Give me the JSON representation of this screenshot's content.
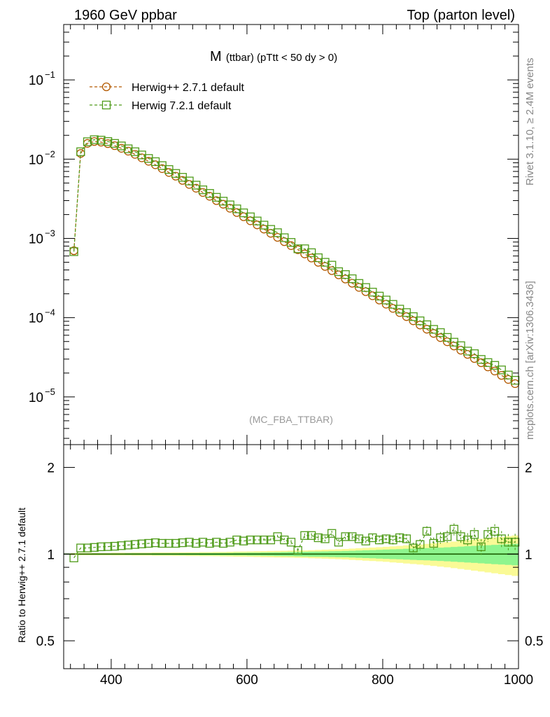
{
  "header": {
    "left": "1960 GeV ppbar",
    "right": "Top (parton level)"
  },
  "side_texts": {
    "rivet": "Rivet 3.1.10, ≥ 2.4M events",
    "mcplots": "mcplots.cern.ch [arXiv:1306.3436]"
  },
  "plot_title": {
    "main": "M",
    "rest": " (ttbar) (pTtt < 50 dy > 0)"
  },
  "analysis_label": "(MC_FBA_TTBAR)",
  "ratio_ylabel": "Ratio to Herwig++ 2.7.1 default",
  "colors": {
    "herwig_pp": "#b35900",
    "herwig7": "#4f9b1a",
    "band_inner": "#8ef58e",
    "band_outer": "#fafa96"
  },
  "chart_data": [
    {
      "type": "line",
      "scale": "log",
      "xlim": [
        330,
        1000
      ],
      "ylim": [
        2.5e-06,
        0.5
      ],
      "x_ticks": [
        "400",
        "600",
        "800",
        "1000"
      ],
      "y_ticks": [
        {
          "value": 0.1,
          "label": "10",
          "exp": "−1"
        },
        {
          "value": 0.01,
          "label": "10",
          "exp": "−2"
        },
        {
          "value": 0.001,
          "label": "10",
          "exp": "−3"
        },
        {
          "value": 0.0001,
          "label": "10",
          "exp": "−4"
        },
        {
          "value": 1e-05,
          "label": "10",
          "exp": "−5"
        }
      ],
      "legend_position": "top-left",
      "series": [
        {
          "name": "Herwig++ 2.7.1 default",
          "marker": "circle",
          "x": [
            345,
            355,
            365,
            375,
            385,
            395,
            405,
            415,
            425,
            435,
            445,
            455,
            465,
            475,
            485,
            495,
            505,
            515,
            525,
            535,
            545,
            555,
            565,
            575,
            585,
            595,
            605,
            615,
            625,
            635,
            645,
            655,
            665,
            675,
            685,
            695,
            705,
            715,
            725,
            735,
            745,
            755,
            765,
            775,
            785,
            795,
            805,
            815,
            825,
            835,
            845,
            855,
            865,
            875,
            885,
            895,
            905,
            915,
            925,
            935,
            945,
            955,
            965,
            975,
            985,
            995
          ],
          "y": [
            0.0007,
            0.0118,
            0.0158,
            0.0167,
            0.0164,
            0.0157,
            0.0148,
            0.0137,
            0.0126,
            0.0115,
            0.0104,
            0.0094,
            0.0085,
            0.0076,
            0.0068,
            0.0061,
            0.0054,
            0.0048,
            0.0043,
            0.0038,
            0.0034,
            0.003,
            0.0027,
            0.0024,
            0.00212,
            0.00188,
            0.00167,
            0.00148,
            0.00131,
            0.00116,
            0.00103,
            0.00091,
            0.00081,
            0.00072,
            0.000637,
            0.000565,
            0.0005,
            0.000443,
            0.000392,
            0.000347,
            0.000307,
            0.000272,
            0.000241,
            0.000213,
            0.000189,
            0.000167,
            0.000148,
            0.000131,
            0.000116,
            0.000103,
            9.12e-05,
            8.07e-05,
            7.14e-05,
            6.32e-05,
            5.6e-05,
            4.96e-05,
            4.39e-05,
            3.89e-05,
            3.44e-05,
            3.05e-05,
            2.7e-05,
            2.39e-05,
            2.12e-05,
            1.87e-05,
            1.66e-05,
            1.47e-05
          ]
        },
        {
          "name": "Herwig 7.2.1 default",
          "marker": "square",
          "x": [
            345,
            355,
            365,
            375,
            385,
            395,
            405,
            415,
            425,
            435,
            445,
            455,
            465,
            475,
            485,
            495,
            505,
            515,
            525,
            535,
            545,
            555,
            565,
            575,
            585,
            595,
            605,
            615,
            625,
            635,
            645,
            655,
            665,
            675,
            685,
            695,
            705,
            715,
            725,
            735,
            745,
            755,
            765,
            775,
            785,
            795,
            805,
            815,
            825,
            835,
            845,
            855,
            865,
            875,
            885,
            895,
            905,
            915,
            925,
            935,
            945,
            955,
            965,
            975,
            985,
            995
          ],
          "y": [
            0.00068,
            0.0124,
            0.0166,
            0.0176,
            0.0174,
            0.0167,
            0.0158,
            0.0147,
            0.0135,
            0.0124,
            0.0113,
            0.0102,
            0.0093,
            0.0083,
            0.0074,
            0.0066,
            0.0059,
            0.0053,
            0.0047,
            0.0041,
            0.0037,
            0.0033,
            0.00295,
            0.00265,
            0.00236,
            0.0021,
            0.00187,
            0.00166,
            0.00147,
            0.0013,
            0.00118,
            0.00102,
            0.00089,
            0.00074,
            0.00074,
            0.00066,
            0.00057,
            0.0005,
            0.00046,
            0.00038,
            0.00035,
            0.00031,
            0.00027,
            0.00024,
            0.00021,
            0.000187,
            0.000167,
            0.000147,
            0.000128,
            0.000116,
            0.000103,
            9.12e-05,
            8.13e-05,
            7.12e-05,
            6.48e-05,
            5.63e-05,
            4.9e-05,
            4.43e-05,
            3.79e-05,
            3.51e-05,
            2.97e-05,
            2.71e-05,
            2.5e-05,
            2.19e-05,
            1.89e-05,
            1.62e-05
          ]
        }
      ]
    },
    {
      "type": "line",
      "xlim": [
        330,
        1000
      ],
      "ylim": [
        0.4,
        2.4
      ],
      "x_ticks": [
        "400",
        "600",
        "800",
        "1000"
      ],
      "y_ticks": [
        {
          "value": 2,
          "label": "2"
        },
        {
          "value": 1,
          "label": "1"
        },
        {
          "value": 0.5,
          "label": "0.5"
        }
      ],
      "ylabel": "Ratio to Herwig++ 2.7.1 default",
      "reference_line": 1,
      "band_inner_halfwidth": [
        0.003,
        0.004,
        0.004,
        0.005,
        0.005,
        0.005,
        0.005,
        0.005,
        0.006,
        0.006,
        0.006,
        0.006,
        0.007,
        0.007,
        0.007,
        0.007,
        0.008,
        0.008,
        0.008,
        0.009,
        0.009,
        0.009,
        0.01,
        0.01,
        0.011,
        0.011,
        0.012,
        0.012,
        0.013,
        0.014,
        0.015,
        0.016,
        0.017,
        0.018,
        0.019,
        0.02,
        0.021,
        0.022,
        0.023,
        0.024,
        0.025,
        0.027,
        0.029,
        0.031,
        0.033,
        0.035,
        0.037,
        0.039,
        0.041,
        0.043,
        0.045,
        0.047,
        0.049,
        0.051,
        0.053,
        0.056,
        0.059,
        0.062,
        0.065,
        0.068,
        0.071,
        0.074,
        0.077,
        0.08,
        0.083,
        0.086
      ],
      "band_outer_halfwidth": [
        0.008,
        0.009,
        0.009,
        0.01,
        0.01,
        0.01,
        0.011,
        0.011,
        0.011,
        0.012,
        0.012,
        0.012,
        0.013,
        0.013,
        0.013,
        0.014,
        0.014,
        0.015,
        0.015,
        0.016,
        0.016,
        0.017,
        0.018,
        0.019,
        0.02,
        0.021,
        0.022,
        0.023,
        0.024,
        0.025,
        0.026,
        0.027,
        0.028,
        0.029,
        0.03,
        0.032,
        0.034,
        0.036,
        0.038,
        0.04,
        0.042,
        0.045,
        0.048,
        0.051,
        0.054,
        0.057,
        0.06,
        0.064,
        0.068,
        0.072,
        0.076,
        0.08,
        0.085,
        0.09,
        0.095,
        0.1,
        0.106,
        0.112,
        0.118,
        0.124,
        0.13,
        0.136,
        0.142,
        0.148,
        0.154,
        0.16
      ],
      "series": [
        {
          "name": "Herwig 7.2.1 default",
          "marker": "square",
          "x": [
            345,
            355,
            365,
            375,
            385,
            395,
            405,
            415,
            425,
            435,
            445,
            455,
            465,
            475,
            485,
            495,
            505,
            515,
            525,
            535,
            545,
            555,
            565,
            575,
            585,
            595,
            605,
            615,
            625,
            635,
            645,
            655,
            665,
            675,
            685,
            695,
            705,
            715,
            725,
            735,
            745,
            755,
            765,
            775,
            785,
            795,
            805,
            815,
            825,
            835,
            845,
            855,
            865,
            875,
            885,
            895,
            905,
            915,
            925,
            935,
            945,
            955,
            965,
            975,
            985,
            995
          ],
          "y": [
            0.97,
            1.05,
            1.05,
            1.055,
            1.06,
            1.062,
            1.065,
            1.07,
            1.075,
            1.08,
            1.085,
            1.09,
            1.095,
            1.09,
            1.09,
            1.09,
            1.095,
            1.1,
            1.09,
            1.1,
            1.09,
            1.1,
            1.09,
            1.1,
            1.12,
            1.11,
            1.12,
            1.12,
            1.12,
            1.12,
            1.15,
            1.12,
            1.1,
            1.03,
            1.16,
            1.16,
            1.14,
            1.13,
            1.18,
            1.1,
            1.15,
            1.15,
            1.13,
            1.11,
            1.14,
            1.12,
            1.13,
            1.12,
            1.14,
            1.13,
            1.05,
            1.08,
            1.2,
            1.09,
            1.14,
            1.15,
            1.22,
            1.15,
            1.12,
            1.17,
            1.06,
            1.17,
            1.2,
            1.13,
            1.1,
            1.1
          ],
          "err": [
            0.004,
            0.005,
            0.005,
            0.005,
            0.005,
            0.006,
            0.006,
            0.006,
            0.007,
            0.007,
            0.007,
            0.008,
            0.008,
            0.008,
            0.009,
            0.009,
            0.009,
            0.01,
            0.01,
            0.011,
            0.011,
            0.012,
            0.012,
            0.013,
            0.013,
            0.014,
            0.014,
            0.015,
            0.016,
            0.016,
            0.017,
            0.018,
            0.019,
            0.02,
            0.021,
            0.022,
            0.023,
            0.024,
            0.025,
            0.026,
            0.027,
            0.028,
            0.03,
            0.032,
            0.034,
            0.036,
            0.038,
            0.04,
            0.042,
            0.044,
            0.046,
            0.048,
            0.05,
            0.052,
            0.054,
            0.056,
            0.058,
            0.06,
            0.062,
            0.064,
            0.066,
            0.068,
            0.07,
            0.072,
            0.074,
            0.076
          ]
        }
      ]
    }
  ]
}
